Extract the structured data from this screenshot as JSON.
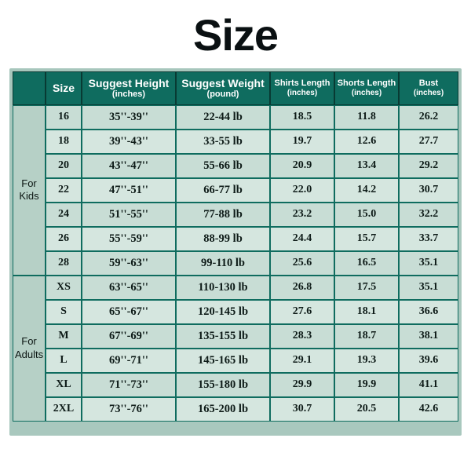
{
  "title": "Size",
  "style": {
    "title_fontsize": 56,
    "title_color": "#0a1012",
    "header_bg": "#0f6c5f",
    "header_text": "#ffffff",
    "cell_bg_a": "#c8ddd5",
    "cell_bg_b": "#d5e6df",
    "group_bg": "#b6d0c6",
    "wrap_bg": "#a7c6bc",
    "border_color": "#0f6c5f",
    "outer_border_color": "#083a33",
    "cell_fontsize": 14,
    "header_fontsize": 12.5,
    "small_header_fontsize": 11
  },
  "columns": [
    {
      "key": "group",
      "label": "",
      "unit": ""
    },
    {
      "key": "size",
      "label": "Size",
      "unit": ""
    },
    {
      "key": "height",
      "label": "Suggest Height",
      "unit": "(inches)"
    },
    {
      "key": "weight",
      "label": "Suggest Weight",
      "unit": "(pound)"
    },
    {
      "key": "shirt",
      "label": "Shirts Length",
      "unit": "(inches)"
    },
    {
      "key": "short",
      "label": "Shorts Length",
      "unit": "(inches)"
    },
    {
      "key": "bust",
      "label": "Bust",
      "unit": "(inches)"
    }
  ],
  "groups": [
    {
      "name": "For Kids",
      "rows": [
        {
          "size": "16",
          "height": "35''-39''",
          "weight": "22-44 lb",
          "shirt": "18.5",
          "short": "11.8",
          "bust": "26.2"
        },
        {
          "size": "18",
          "height": "39''-43''",
          "weight": "33-55 lb",
          "shirt": "19.7",
          "short": "12.6",
          "bust": "27.7"
        },
        {
          "size": "20",
          "height": "43''-47''",
          "weight": "55-66 lb",
          "shirt": "20.9",
          "short": "13.4",
          "bust": "29.2"
        },
        {
          "size": "22",
          "height": "47''-51''",
          "weight": "66-77 lb",
          "shirt": "22.0",
          "short": "14.2",
          "bust": "30.7"
        },
        {
          "size": "24",
          "height": "51''-55''",
          "weight": "77-88 lb",
          "shirt": "23.2",
          "short": "15.0",
          "bust": "32.2"
        },
        {
          "size": "26",
          "height": "55''-59''",
          "weight": "88-99 lb",
          "shirt": "24.4",
          "short": "15.7",
          "bust": "33.7"
        },
        {
          "size": "28",
          "height": "59''-63''",
          "weight": "99-110 lb",
          "shirt": "25.6",
          "short": "16.5",
          "bust": "35.1"
        }
      ]
    },
    {
      "name": "For Adults",
      "rows": [
        {
          "size": "XS",
          "height": "63''-65''",
          "weight": "110-130 lb",
          "shirt": "26.8",
          "short": "17.5",
          "bust": "35.1"
        },
        {
          "size": "S",
          "height": "65''-67''",
          "weight": "120-145 lb",
          "shirt": "27.6",
          "short": "18.1",
          "bust": "36.6"
        },
        {
          "size": "M",
          "height": "67''-69''",
          "weight": "135-155 lb",
          "shirt": "28.3",
          "short": "18.7",
          "bust": "38.1"
        },
        {
          "size": "L",
          "height": "69''-71''",
          "weight": "145-165 lb",
          "shirt": "29.1",
          "short": "19.3",
          "bust": "39.6"
        },
        {
          "size": "XL",
          "height": "71''-73''",
          "weight": "155-180 lb",
          "shirt": "29.9",
          "short": "19.9",
          "bust": "41.1"
        },
        {
          "size": "2XL",
          "height": "73''-76''",
          "weight": "165-200 lb",
          "shirt": "30.7",
          "short": "20.5",
          "bust": "42.6"
        }
      ]
    }
  ]
}
